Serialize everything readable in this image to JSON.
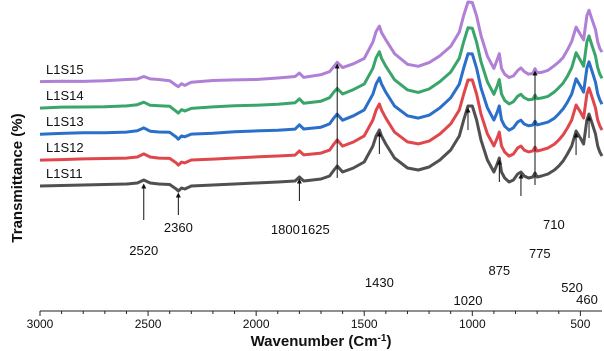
{
  "chart_data": {
    "type": "line",
    "xlabel": "Wavenumber (Cm",
    "xlabel_sup": "-1",
    "xlabel_close": ")",
    "ylabel": "Transmittance (%)",
    "xlim": [
      3000,
      400
    ],
    "x_reversed": true,
    "x_ticks": [
      3000,
      2500,
      2000,
      1500,
      1000,
      500
    ],
    "grid": false,
    "legend": "labels placed at the left end of each curve",
    "series": [
      {
        "name": "L1S11",
        "color": "#505050",
        "label": "L1S11"
      },
      {
        "name": "L1S12",
        "color": "#e0474c",
        "label": "L1S12"
      },
      {
        "name": "L1S13",
        "color": "#2a6fc9",
        "label": "L1S13"
      },
      {
        "name": "L1S14",
        "color": "#3aa56a",
        "label": "L1S14"
      },
      {
        "name": "L1S15",
        "color": "#b07fd6",
        "label": "L1S15"
      }
    ],
    "profile_x": [
      3000,
      2900,
      2800,
      2700,
      2600,
      2550,
      2520,
      2490,
      2450,
      2400,
      2370,
      2360,
      2345,
      2330,
      2300,
      2200,
      2100,
      2000,
      1900,
      1820,
      1800,
      1780,
      1700,
      1660,
      1640,
      1625,
      1600,
      1550,
      1500,
      1460,
      1445,
      1430,
      1420,
      1400,
      1360,
      1300,
      1250,
      1200,
      1150,
      1100,
      1060,
      1040,
      1020,
      1000,
      980,
      960,
      930,
      900,
      885,
      875,
      865,
      850,
      830,
      810,
      790,
      775,
      760,
      740,
      720,
      710,
      700,
      680,
      650,
      620,
      600,
      580,
      560,
      540,
      520,
      500,
      485,
      470,
      460,
      445,
      430,
      420,
      410,
      400
    ],
    "profile_y": [
      0,
      -0.5,
      -1,
      -1.5,
      -2,
      -3,
      -6,
      -3,
      -2,
      -1.5,
      3,
      5,
      2,
      3,
      0,
      -1,
      -2,
      -3,
      -4,
      -5,
      -9,
      -5,
      -7,
      -10,
      -16,
      -20,
      -14,
      -18,
      -24,
      -40,
      -50,
      -56,
      -50,
      -42,
      -28,
      -18,
      -16,
      -19,
      -26,
      -36,
      -50,
      -66,
      -80,
      -80,
      -66,
      -46,
      -26,
      -14,
      -22,
      -28,
      -14,
      -8,
      -4,
      -6,
      -12,
      -14,
      -10,
      -8,
      -9,
      -13,
      -9,
      -10,
      -12,
      -16,
      -20,
      -25,
      -32,
      -40,
      -55,
      -48,
      -42,
      -66,
      -72,
      -62,
      -52,
      -40,
      -34,
      -30
    ],
    "offsets": [
      0,
      26,
      52,
      78,
      104
    ],
    "annotations": [
      {
        "label": "2520",
        "x": 2520
      },
      {
        "label": "2360",
        "x": 2360
      },
      {
        "label": "1800",
        "x": 1800
      },
      {
        "label": "1625",
        "x": 1625
      },
      {
        "label": "1430",
        "x": 1430
      },
      {
        "label": "1020",
        "x": 1020
      },
      {
        "label": "875",
        "x": 875
      },
      {
        "label": "775",
        "x": 775
      },
      {
        "label": "710",
        "x": 710
      },
      {
        "label": "520",
        "x": 520
      },
      {
        "label": "460",
        "x": 460
      }
    ]
  }
}
